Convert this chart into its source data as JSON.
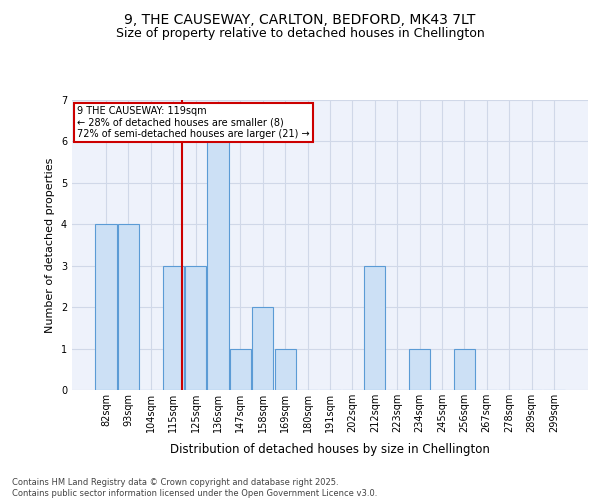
{
  "title_line1": "9, THE CAUSEWAY, CARLTON, BEDFORD, MK43 7LT",
  "title_line2": "Size of property relative to detached houses in Chellington",
  "xlabel": "Distribution of detached houses by size in Chellington",
  "ylabel": "Number of detached properties",
  "categories": [
    "82sqm",
    "93sqm",
    "104sqm",
    "115sqm",
    "125sqm",
    "136sqm",
    "147sqm",
    "158sqm",
    "169sqm",
    "180sqm",
    "191sqm",
    "202sqm",
    "212sqm",
    "223sqm",
    "234sqm",
    "245sqm",
    "256sqm",
    "267sqm",
    "278sqm",
    "289sqm",
    "299sqm"
  ],
  "values": [
    4,
    4,
    0,
    3,
    3,
    6,
    1,
    2,
    1,
    0,
    0,
    0,
    3,
    0,
    1,
    0,
    1,
    0,
    0,
    0,
    0
  ],
  "bar_color": "#cce0f5",
  "bar_edge_color": "#5b9bd5",
  "bar_edge_width": 0.8,
  "grid_color": "#d0d8e8",
  "bg_color": "#eef2fb",
  "ref_line_color": "#cc0000",
  "annotation_text": "9 THE CAUSEWAY: 119sqm\n← 28% of detached houses are smaller (8)\n72% of semi-detached houses are larger (21) →",
  "annotation_box_color": "#cc0000",
  "ylim": [
    0,
    7
  ],
  "yticks": [
    0,
    1,
    2,
    3,
    4,
    5,
    6,
    7
  ],
  "footnote": "Contains HM Land Registry data © Crown copyright and database right 2025.\nContains public sector information licensed under the Open Government Licence v3.0.",
  "title_fontsize": 10,
  "subtitle_fontsize": 9,
  "xlabel_fontsize": 8.5,
  "ylabel_fontsize": 8,
  "tick_fontsize": 7,
  "annot_fontsize": 7,
  "footnote_fontsize": 6
}
